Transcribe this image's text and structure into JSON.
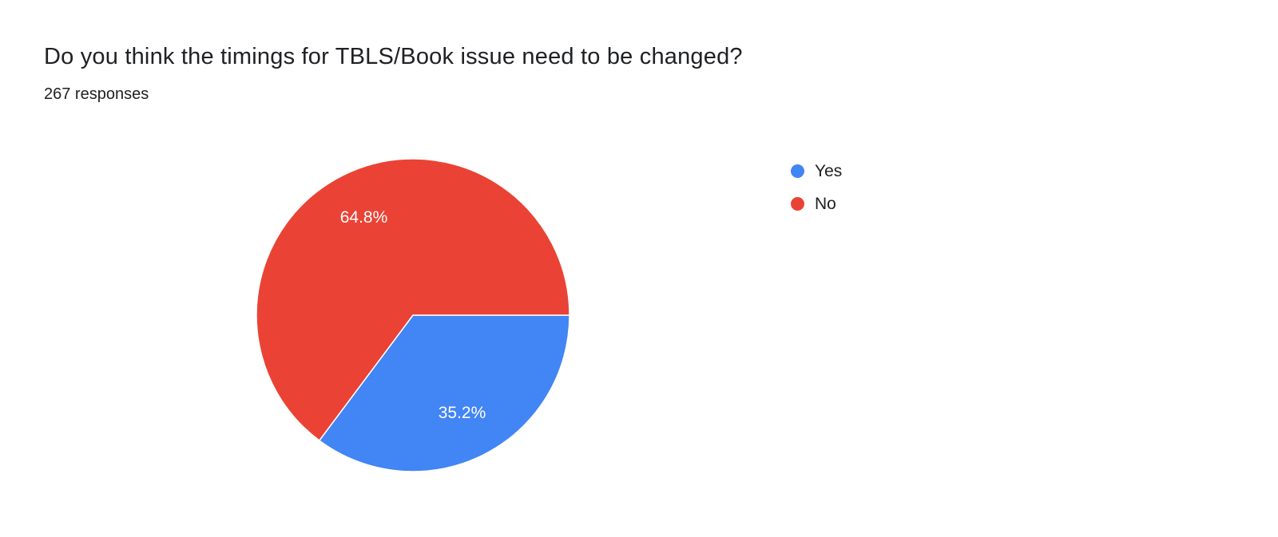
{
  "header": {
    "title": "Do you think the timings for TBLS/Book issue need to be changed?",
    "responses": "267 responses"
  },
  "chart_data": {
    "type": "pie",
    "title": "Do you think the timings for TBLS/Book issue need to be changed?",
    "subtitle": "267 responses",
    "legend_position": "right",
    "start_position": "3-oclock",
    "direction": "clockwise",
    "slices": [
      {
        "label": "Yes",
        "percent": 35.2,
        "data_label": "35.2%",
        "color": "#4285f4"
      },
      {
        "label": "No",
        "percent": 64.8,
        "data_label": "64.8%",
        "color": "#ea4335"
      }
    ],
    "slice_label_color": "#ffffff",
    "slice_divider_color": "#ffffff"
  },
  "colors": {
    "background": "#ffffff",
    "text": "#202124"
  }
}
